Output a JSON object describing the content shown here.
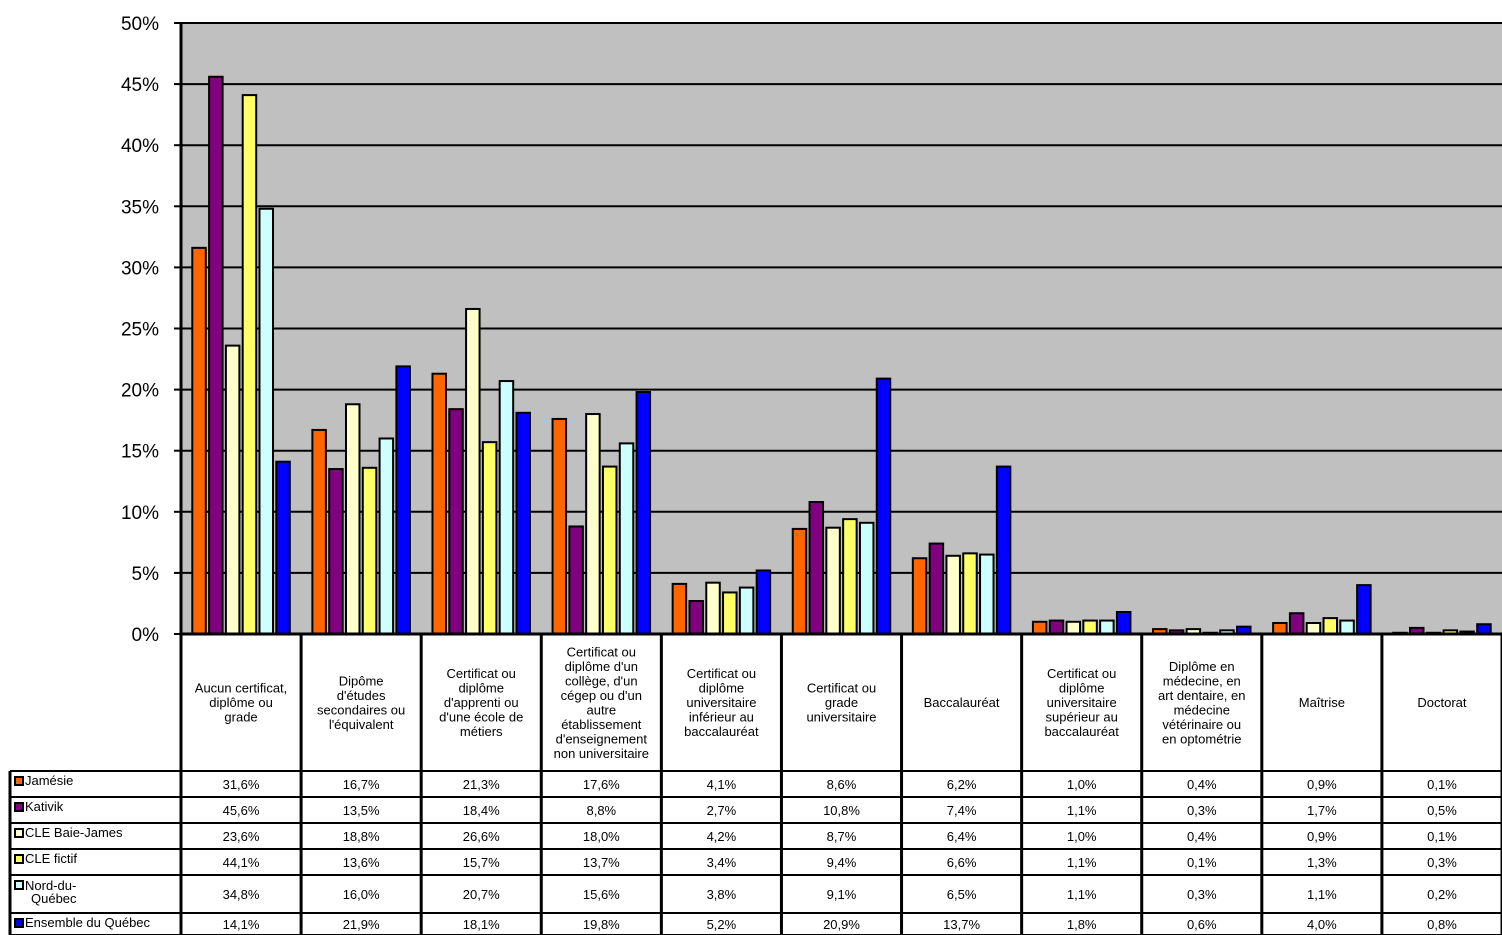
{
  "chart_data": {
    "type": "bar",
    "title": "",
    "xlabel": "",
    "ylabel": "",
    "ylim": [
      0,
      50
    ],
    "yticks": [
      "0%",
      "5%",
      "10%",
      "15%",
      "20%",
      "25%",
      "30%",
      "35%",
      "40%",
      "45%",
      "50%"
    ],
    "grid": true,
    "legend_placement": "data-table-left",
    "categories": [
      [
        "Aucun certificat,",
        "diplôme ou",
        "grade"
      ],
      [
        "Dipôme",
        "d'études",
        "secondaires ou",
        "l'équivalent"
      ],
      [
        "Certificat ou",
        "diplôme",
        "d'apprenti ou",
        "d'une école de",
        "métiers"
      ],
      [
        "Certificat ou",
        "diplôme d'un",
        "collège, d'un",
        "cégep ou d'un",
        "autre",
        "établissement",
        "d'enseignement",
        "non universitaire"
      ],
      [
        "Certificat ou",
        "diplôme",
        "universitaire",
        "inférieur au",
        "baccalauréat"
      ],
      [
        "Certificat ou",
        "grade",
        "universitaire"
      ],
      [
        "Baccalauréat"
      ],
      [
        "Certificat ou",
        "diplôme",
        "universitaire",
        "supérieur au",
        "baccalauréat"
      ],
      [
        "Diplôme en",
        "médecine, en",
        "art dentaire, en",
        "médecine",
        "vétérinaire ou",
        "en optométrie"
      ],
      [
        "Maîtrise"
      ],
      [
        "Doctorat"
      ]
    ],
    "series": [
      {
        "name": "Jamésie",
        "color": "#ff6600",
        "values": [
          31.6,
          16.7,
          21.3,
          17.6,
          4.1,
          8.6,
          6.2,
          1.0,
          0.4,
          0.9,
          0.1
        ],
        "labels": [
          "31,6%",
          "16,7%",
          "21,3%",
          "17,6%",
          "4,1%",
          "8,6%",
          "6,2%",
          "1,0%",
          "0,4%",
          "0,9%",
          "0,1%"
        ]
      },
      {
        "name": "Kativik",
        "color": "#800080",
        "values": [
          45.6,
          13.5,
          18.4,
          8.8,
          2.7,
          10.8,
          7.4,
          1.1,
          0.3,
          1.7,
          0.5
        ],
        "labels": [
          "45,6%",
          "13,5%",
          "18,4%",
          "8,8%",
          "2,7%",
          "10,8%",
          "7,4%",
          "1,1%",
          "0,3%",
          "1,7%",
          "0,5%"
        ]
      },
      {
        "name": "CLE Baie-James",
        "color": "#ffffcc",
        "values": [
          23.6,
          18.8,
          26.6,
          18.0,
          4.2,
          8.7,
          6.4,
          1.0,
          0.4,
          0.9,
          0.1
        ],
        "labels": [
          "23,6%",
          "18,8%",
          "26,6%",
          "18,0%",
          "4,2%",
          "8,7%",
          "6,4%",
          "1,0%",
          "0,4%",
          "0,9%",
          "0,1%"
        ]
      },
      {
        "name": "CLE fictif",
        "color": "#ffff66",
        "values": [
          44.1,
          13.6,
          15.7,
          13.7,
          3.4,
          9.4,
          6.6,
          1.1,
          0.1,
          1.3,
          0.3
        ],
        "labels": [
          "44,1%",
          "13,6%",
          "15,7%",
          "13,7%",
          "3,4%",
          "9,4%",
          "6,6%",
          "1,1%",
          "0,1%",
          "1,3%",
          "0,3%"
        ]
      },
      {
        "name": [
          "Nord-du-",
          "Québec"
        ],
        "color": "#ccffff",
        "values": [
          34.8,
          16.0,
          20.7,
          15.6,
          3.8,
          9.1,
          6.5,
          1.1,
          0.3,
          1.1,
          0.2
        ],
        "labels": [
          "34,8%",
          "16,0%",
          "20,7%",
          "15,6%",
          "3,8%",
          "9,1%",
          "6,5%",
          "1,1%",
          "0,3%",
          "1,1%",
          "0,2%"
        ]
      },
      {
        "name": "Ensemble du Québec",
        "color": "#0000ff",
        "values": [
          14.1,
          21.9,
          18.1,
          19.8,
          5.2,
          20.9,
          13.7,
          1.8,
          0.6,
          4.0,
          0.8
        ],
        "labels": [
          "14,1%",
          "21,9%",
          "18,1%",
          "19,8%",
          "5,2%",
          "20,9%",
          "13,7%",
          "1,8%",
          "0,6%",
          "4,0%",
          "0,8%"
        ]
      }
    ],
    "plot_background": "#c0c0c0"
  }
}
